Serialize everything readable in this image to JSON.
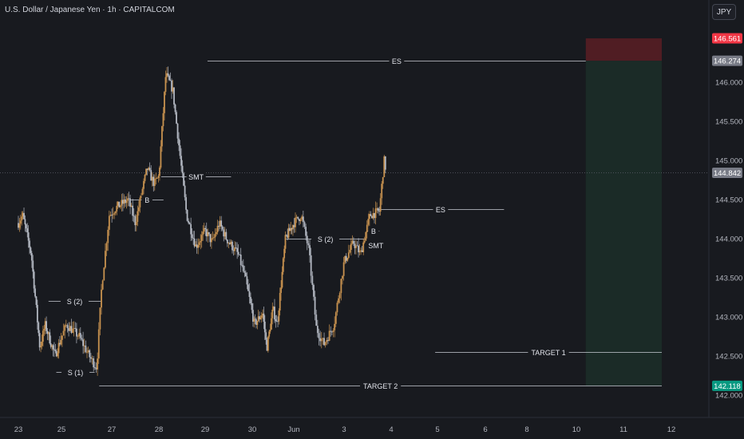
{
  "header": {
    "title": "U.S. Dollar / Japanese Yen · 1h · CAPITALCOM",
    "currency": "JPY"
  },
  "colors": {
    "background": "#181a1f",
    "bull": "#c8924f",
    "bear": "#b3b8c2",
    "stop_zone": "#5a1e24",
    "target_zone": "#1c2d28",
    "stop_badge": "#f23645",
    "target_badge": "#089981"
  },
  "chart_data": {
    "type": "candlestick",
    "title": "U.S. Dollar / Japanese Yen · 1h · CAPITALCOM",
    "y_ticks": [
      142.0,
      142.5,
      143.0,
      143.5,
      144.0,
      144.5,
      145.0,
      145.5,
      146.0
    ],
    "y_tick_labels": [
      "142.000",
      "142.500",
      "143.000",
      "143.500",
      "144.000",
      "144.500",
      "145.000",
      "145.500",
      "146.000"
    ],
    "ylim": [
      141.94,
      146.82
    ],
    "x_ticks": [
      {
        "i": 0,
        "label": "23"
      },
      {
        "i": 1,
        "label": "25"
      },
      {
        "i": 2,
        "label": "27"
      },
      {
        "i": 3,
        "label": "28"
      },
      {
        "i": 4,
        "label": "29"
      },
      {
        "i": 5,
        "label": "30"
      },
      {
        "i": 6,
        "label": "Jun"
      },
      {
        "i": 7,
        "label": "3"
      },
      {
        "i": 8,
        "label": "4"
      },
      {
        "i": 9,
        "label": "5"
      },
      {
        "i": 10,
        "label": "6"
      },
      {
        "i": 11,
        "label": "8"
      },
      {
        "i": 12,
        "label": "10"
      },
      {
        "i": 13,
        "label": "11"
      },
      {
        "i": 14,
        "label": "12"
      }
    ],
    "current_price": "144.842",
    "price_path": [
      [
        0,
        144.2
      ],
      [
        0.1,
        144.3
      ],
      [
        0.3,
        143.8
      ],
      [
        0.5,
        142.6
      ],
      [
        0.62,
        142.9
      ],
      [
        0.85,
        142.5
      ],
      [
        1.1,
        142.9
      ],
      [
        1.35,
        142.75
      ],
      [
        1.55,
        142.5
      ],
      [
        1.7,
        142.35
      ],
      [
        1.8,
        143.4
      ],
      [
        1.95,
        144.3
      ],
      [
        2.1,
        144.4
      ],
      [
        2.35,
        144.5
      ],
      [
        2.5,
        144.2
      ],
      [
        2.75,
        144.9
      ],
      [
        2.9,
        144.7
      ],
      [
        3.0,
        144.8
      ],
      [
        3.15,
        146.1
      ],
      [
        3.3,
        145.9
      ],
      [
        3.45,
        145.1
      ],
      [
        3.6,
        144.3
      ],
      [
        3.8,
        143.9
      ],
      [
        4.0,
        144.1
      ],
      [
        4.15,
        143.95
      ],
      [
        4.3,
        144.2
      ],
      [
        4.45,
        144.0
      ],
      [
        4.7,
        143.8
      ],
      [
        4.85,
        143.5
      ],
      [
        5.05,
        142.9
      ],
      [
        5.25,
        143.05
      ],
      [
        5.35,
        142.6
      ],
      [
        5.5,
        143.1
      ],
      [
        5.6,
        142.9
      ],
      [
        5.8,
        144.0
      ],
      [
        6.0,
        144.2
      ],
      [
        6.15,
        144.3
      ],
      [
        6.3,
        143.85
      ],
      [
        6.45,
        142.85
      ],
      [
        6.6,
        142.65
      ],
      [
        6.8,
        142.9
      ],
      [
        7.0,
        143.7
      ],
      [
        7.2,
        143.95
      ],
      [
        7.35,
        143.8
      ],
      [
        7.55,
        144.3
      ],
      [
        7.75,
        144.35
      ],
      [
        7.85,
        145.0
      ],
      [
        7.9,
        144.85
      ]
    ],
    "annotations": [
      {
        "text": "ES",
        "x1": 4.05,
        "x2": 12.2,
        "y": 146.274
      },
      {
        "text": "SMT",
        "x1": 3.05,
        "x2": 4.55,
        "y": 144.8
      },
      {
        "text": "B",
        "x1": 2.4,
        "x2": 3.1,
        "y": 144.5
      },
      {
        "text": "S (2)",
        "x1": 0.7,
        "x2": 1.78,
        "y": 143.2
      },
      {
        "text": "S (1)",
        "x1": 0.88,
        "x2": 1.66,
        "y": 142.3
      },
      {
        "text": "S (2)",
        "x1": 5.8,
        "x2": 7.45,
        "y": 144.0
      },
      {
        "text": "B",
        "x1": 7.5,
        "x2": 7.75,
        "y": 144.1
      },
      {
        "text": "SMT",
        "x1": 7.55,
        "x2": 7.8,
        "y": 143.92
      },
      {
        "text": "ES",
        "x1": 7.7,
        "x2": 10.45,
        "y": 144.38
      },
      {
        "text": "TARGET 1",
        "x1": 8.95,
        "x2": 13.8,
        "y": 142.55
      },
      {
        "text": "TARGET 2",
        "x1": 1.75,
        "x2": 13.8,
        "y": 142.118
      }
    ],
    "position": {
      "x1": 12.2,
      "x2": 13.8,
      "entry": 146.274,
      "stop": 146.561,
      "target": 142.118
    },
    "badges": [
      {
        "text": "146.561",
        "price": 146.561,
        "color": "#f23645"
      },
      {
        "text": "146.274",
        "price": 146.274,
        "color": "#787b86"
      },
      {
        "text": "144.842",
        "price": 144.842,
        "color": "#787b86"
      },
      {
        "text": "142.118",
        "price": 142.118,
        "color": "#089981"
      }
    ]
  }
}
